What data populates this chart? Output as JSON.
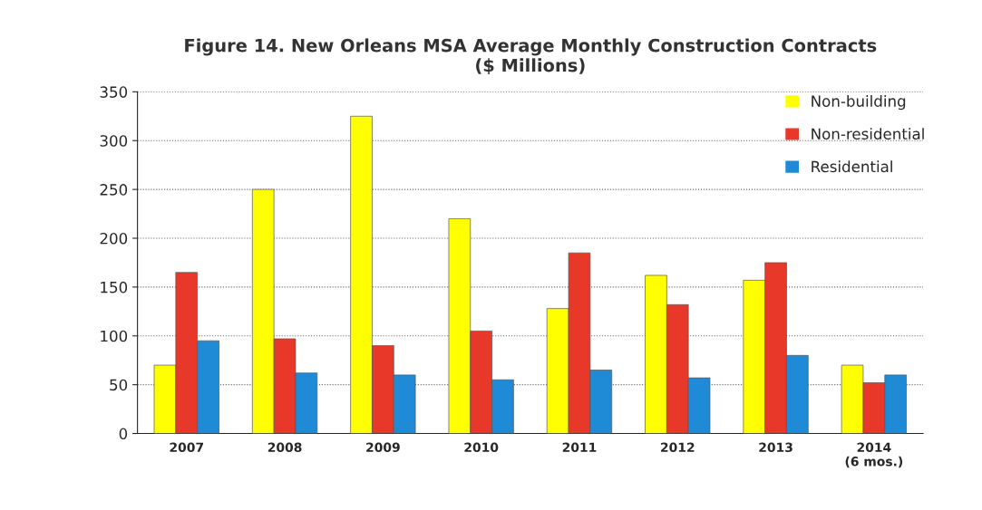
{
  "chart_data": {
    "type": "bar",
    "title": "Figure 14. New Orleans MSA Average Monthly Construction Contracts\n($ Millions)",
    "categories": [
      "2007",
      "2008",
      "2009",
      "2010",
      "2011",
      "2012",
      "2013",
      "2014\n(6 mos.)"
    ],
    "series": [
      {
        "name": "Non-building",
        "color": "#ffff00",
        "values": [
          70,
          250,
          325,
          220,
          128,
          162,
          157,
          70
        ]
      },
      {
        "name": "Non-residential",
        "color": "#e8382a",
        "values": [
          165,
          97,
          90,
          105,
          185,
          132,
          175,
          52
        ]
      },
      {
        "name": "Residential",
        "color": "#1f8ad6",
        "values": [
          95,
          62,
          60,
          55,
          65,
          57,
          80,
          60
        ]
      }
    ],
    "ylim": [
      0,
      350
    ],
    "yticks": [
      0,
      50,
      100,
      150,
      200,
      250,
      300,
      350
    ],
    "grid": "y",
    "legend": "top right"
  }
}
